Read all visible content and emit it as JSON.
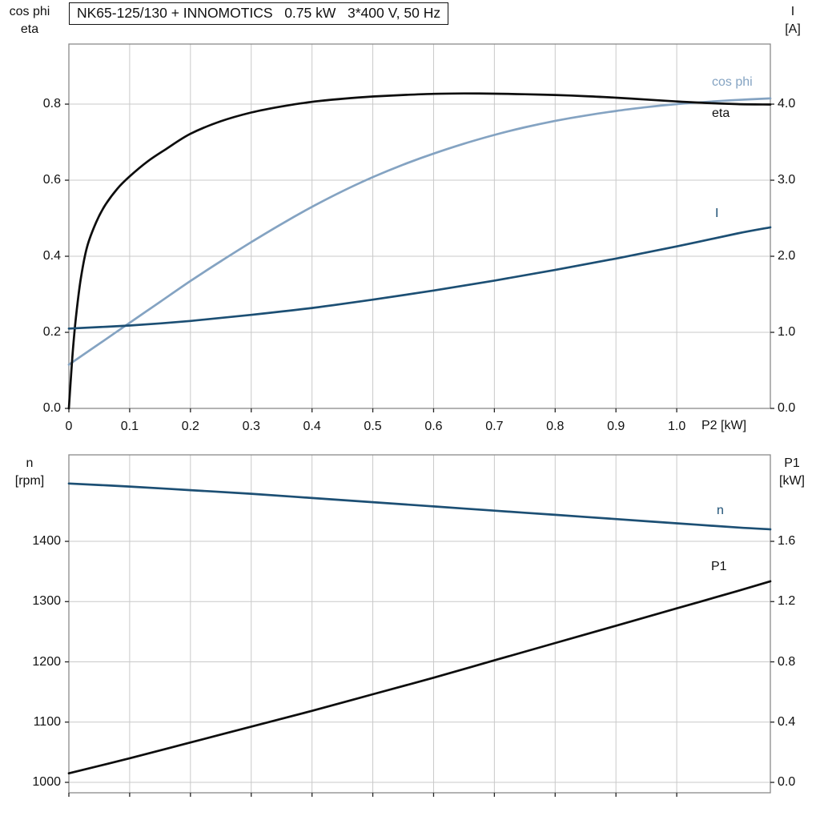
{
  "title": "NK65-125/130 + INNOMOTICS   0.75 kW   3*400 V, 50 Hz",
  "colors": {
    "black": "#0d0d0d",
    "light_blue": "#84a3c2",
    "dark_blue": "#1c4f74",
    "grid": "#c9c9c9",
    "frame": "#8a8a8a",
    "tick": "#222222"
  },
  "chart_data": [
    {
      "type": "line",
      "title": "NK65-125/130 + INNOMOTICS   0.75 kW   3*400 V, 50 Hz",
      "legend_position": "end-of-curve",
      "grid": true,
      "x_axis": {
        "label": "P2 [kW]",
        "min": 0,
        "max": 1.154,
        "ticks": [
          0,
          0.1,
          0.2,
          0.3,
          0.4,
          0.5,
          0.6,
          0.7,
          0.8,
          0.9,
          1.0
        ],
        "tick_labels": [
          "0",
          "0.1",
          "0.2",
          "0.3",
          "0.4",
          "0.5",
          "0.6",
          "0.7",
          "0.8",
          "0.9",
          "1.0"
        ]
      },
      "left_axis": {
        "label": [
          "cos phi",
          "eta"
        ],
        "min": 0,
        "max": 0.958,
        "ticks": [
          0,
          0.2,
          0.4,
          0.6,
          0.8
        ],
        "tick_labels": [
          "0.0",
          "0.2",
          "0.4",
          "0.6",
          "0.8"
        ]
      },
      "right_axis": {
        "label": [
          "I",
          "[A]"
        ],
        "min": 0,
        "max": 4.79,
        "ticks": [
          0,
          1,
          2,
          3,
          4
        ],
        "tick_labels": [
          "0.0",
          "1.0",
          "2.0",
          "3.0",
          "4.0"
        ]
      },
      "series": [
        {
          "name": "cos phi",
          "axis": "left",
          "color_key": "light_blue",
          "x": [
            0,
            0.05,
            0.1,
            0.15,
            0.2,
            0.25,
            0.3,
            0.35,
            0.4,
            0.45,
            0.5,
            0.55,
            0.6,
            0.65,
            0.7,
            0.75,
            0.8,
            0.85,
            0.9,
            0.95,
            1.0,
            1.05,
            1.1,
            1.154
          ],
          "y": [
            0.115,
            0.17,
            0.225,
            0.28,
            0.335,
            0.387,
            0.437,
            0.485,
            0.53,
            0.571,
            0.608,
            0.641,
            0.67,
            0.696,
            0.719,
            0.739,
            0.756,
            0.77,
            0.782,
            0.792,
            0.8,
            0.806,
            0.811,
            0.815
          ]
        },
        {
          "name": "eta",
          "axis": "left",
          "color_key": "black",
          "x": [
            0,
            0.004,
            0.008,
            0.013,
            0.02,
            0.03,
            0.045,
            0.06,
            0.08,
            0.1,
            0.13,
            0.16,
            0.2,
            0.25,
            0.3,
            0.35,
            0.4,
            0.45,
            0.5,
            0.55,
            0.6,
            0.65,
            0.7,
            0.75,
            0.8,
            0.85,
            0.9,
            0.95,
            1.0,
            1.05,
            1.1,
            1.154
          ],
          "y": [
            0,
            0.095,
            0.18,
            0.26,
            0.345,
            0.425,
            0.49,
            0.535,
            0.578,
            0.61,
            0.65,
            0.682,
            0.722,
            0.755,
            0.778,
            0.794,
            0.806,
            0.814,
            0.82,
            0.824,
            0.827,
            0.828,
            0.8275,
            0.826,
            0.824,
            0.821,
            0.817,
            0.812,
            0.807,
            0.803,
            0.8,
            0.799
          ]
        },
        {
          "name": "I",
          "axis": "right",
          "color_key": "dark_blue",
          "x": [
            0,
            0.1,
            0.2,
            0.3,
            0.4,
            0.5,
            0.6,
            0.7,
            0.8,
            0.9,
            1.0,
            1.1,
            1.154
          ],
          "y": [
            1.05,
            1.09,
            1.15,
            1.23,
            1.32,
            1.43,
            1.55,
            1.68,
            1.82,
            1.97,
            2.13,
            2.3,
            2.38
          ]
        }
      ]
    },
    {
      "type": "line",
      "title": "",
      "legend_position": "end-of-curve",
      "grid": true,
      "x_axis": {
        "label": "",
        "min": 0,
        "max": 1.154,
        "ticks": [
          0,
          0.1,
          0.2,
          0.3,
          0.4,
          0.5,
          0.6,
          0.7,
          0.8,
          0.9,
          1.0
        ],
        "tick_labels": []
      },
      "left_axis": {
        "label": [
          "n",
          "[rpm]"
        ],
        "min": 982.7,
        "max": 1543.6,
        "ticks": [
          1000,
          1100,
          1200,
          1300,
          1400
        ],
        "tick_labels": [
          "1000",
          "1100",
          "1200",
          "1300",
          "1400"
        ]
      },
      "right_axis": {
        "label": [
          "P1",
          "[kW]"
        ],
        "min": -0.069,
        "max": 2.174,
        "ticks": [
          0,
          0.4,
          0.8,
          1.2,
          1.6
        ],
        "tick_labels": [
          "0.0",
          "0.4",
          "0.8",
          "1.2",
          "1.6"
        ]
      },
      "series": [
        {
          "name": "n",
          "axis": "left",
          "color_key": "dark_blue",
          "x": [
            0,
            0.1,
            0.2,
            0.3,
            0.4,
            0.5,
            0.6,
            0.7,
            0.8,
            0.9,
            1.0,
            1.1,
            1.154
          ],
          "y": [
            1496,
            1491,
            1485,
            1479,
            1472,
            1465,
            1458,
            1451,
            1444,
            1437,
            1430,
            1423,
            1420
          ]
        },
        {
          "name": "P1",
          "axis": "right",
          "color_key": "black",
          "x": [
            0,
            0.1,
            0.2,
            0.3,
            0.4,
            0.5,
            0.6,
            0.7,
            0.8,
            0.9,
            1.0,
            1.1,
            1.154
          ],
          "y": [
            0.06,
            0.16,
            0.265,
            0.37,
            0.475,
            0.585,
            0.695,
            0.81,
            0.925,
            1.04,
            1.155,
            1.27,
            1.335
          ]
        }
      ]
    }
  ]
}
